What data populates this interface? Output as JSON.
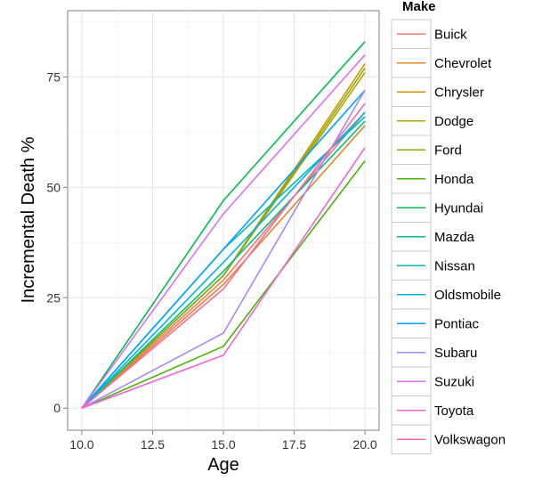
{
  "chart_data": {
    "type": "line",
    "title": "",
    "xlabel": "Age",
    "ylabel": "Incremental Death %",
    "x": [
      10,
      15,
      20
    ],
    "xlim": [
      9.5,
      20.5
    ],
    "ylim": [
      -5,
      90
    ],
    "xticks": [
      "10.0",
      "12.5",
      "15.0",
      "17.5",
      "20.0"
    ],
    "yticks": [
      "0",
      "25",
      "50",
      "75"
    ],
    "grid": true,
    "legend": {
      "title": "Make",
      "placement": "right"
    },
    "series": [
      {
        "name": "Buick",
        "color": "#F8766D",
        "values": [
          0,
          29,
          67
        ]
      },
      {
        "name": "Chevrolet",
        "color": "#E7851E",
        "values": [
          0,
          28,
          64
        ]
      },
      {
        "name": "Chrysler",
        "color": "#D09400",
        "values": [
          0,
          30,
          78
        ]
      },
      {
        "name": "Dodge",
        "color": "#B2A100",
        "values": [
          0,
          30,
          76
        ]
      },
      {
        "name": "Ford",
        "color": "#89AC00",
        "values": [
          0,
          30,
          77
        ]
      },
      {
        "name": "Honda",
        "color": "#45B500",
        "values": [
          0,
          14,
          56
        ]
      },
      {
        "name": "Hyundai",
        "color": "#00BC51",
        "values": [
          0,
          47,
          83
        ]
      },
      {
        "name": "Mazda",
        "color": "#00C087",
        "values": [
          0,
          31,
          65
        ]
      },
      {
        "name": "Nissan",
        "color": "#00BCB4",
        "values": [
          0,
          36,
          66
        ]
      },
      {
        "name": "Oldsmobile",
        "color": "#00B4E4",
        "values": [
          0,
          33,
          67
        ]
      },
      {
        "name": "Pontiac",
        "color": "#00A3FF",
        "values": [
          0,
          36,
          72
        ]
      },
      {
        "name": "Subaru",
        "color": "#A58AFF",
        "values": [
          0,
          17,
          72
        ]
      },
      {
        "name": "Suzuki",
        "color": "#DF70F8",
        "values": [
          0,
          44,
          80
        ]
      },
      {
        "name": "Toyota",
        "color": "#FB61D7",
        "values": [
          0,
          12,
          59
        ]
      },
      {
        "name": "Volkswagon",
        "color": "#FF66A8",
        "values": [
          0,
          27,
          69
        ]
      }
    ]
  }
}
